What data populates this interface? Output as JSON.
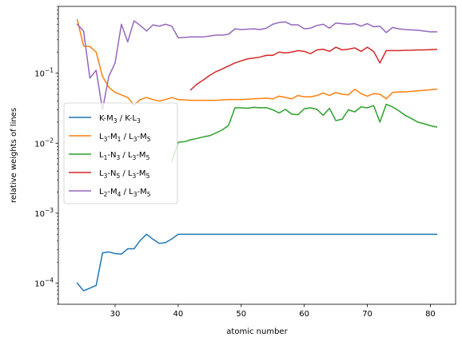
{
  "chart_data": {
    "type": "line",
    "title": "",
    "xlabel": "atomic number",
    "ylabel": "relative weights of lines",
    "yscale": "log",
    "xlim": [
      21,
      84
    ],
    "ylim": [
      5e-05,
      0.9
    ],
    "xticks": [
      30,
      40,
      50,
      60,
      70,
      80
    ],
    "yticks": [
      {
        "value": 0.0001,
        "base": "10",
        "exp": "−4"
      },
      {
        "value": 0.001,
        "base": "10",
        "exp": "−3"
      },
      {
        "value": 0.01,
        "base": "10",
        "exp": "−2"
      },
      {
        "value": 0.1,
        "base": "10",
        "exp": "−1"
      }
    ],
    "grid": false,
    "legend_position": "center-left",
    "series": [
      {
        "name": "K-M3 / K-L3",
        "legend": [
          [
            "K-M",
            ""
          ],
          [
            "3",
            "sub"
          ],
          [
            " / K-L",
            ""
          ],
          [
            "3",
            "sub"
          ]
        ],
        "color": "#1f77b4",
        "x": [
          24,
          25,
          26,
          27,
          28,
          29,
          30,
          31,
          32,
          33,
          34,
          35,
          36,
          37,
          38,
          39,
          40,
          81
        ],
        "y": [
          0.0001,
          7.8e-05,
          8.5e-05,
          9.3e-05,
          0.00027,
          0.00028,
          0.000265,
          0.00026,
          0.00031,
          0.00031,
          0.00041,
          0.0005,
          0.000425,
          0.00037,
          0.00038,
          0.00043,
          0.0005,
          0.0005
        ]
      },
      {
        "name": "L3-M1 / L3-M5",
        "legend": [
          [
            "L",
            ""
          ],
          [
            "3",
            "sub"
          ],
          [
            "-M",
            ""
          ],
          [
            "1",
            "sub"
          ],
          [
            " / L",
            ""
          ],
          [
            "3",
            "sub"
          ],
          [
            "-M",
            ""
          ],
          [
            "5",
            "sub"
          ]
        ],
        "color": "#ff7f0e",
        "x": [
          24,
          25,
          26,
          27,
          28,
          29,
          30,
          31,
          32,
          33,
          34,
          35,
          36,
          37,
          38,
          39,
          40,
          42,
          44,
          46,
          48,
          50,
          52,
          54,
          55,
          56,
          57,
          58,
          59,
          60,
          61,
          62,
          63,
          64,
          65,
          66,
          67,
          68,
          69,
          70,
          71,
          72,
          73,
          74,
          75,
          76,
          78,
          80,
          81
        ],
        "y": [
          0.58,
          0.245,
          0.24,
          0.2,
          0.09,
          0.063,
          0.053,
          0.049,
          0.045,
          0.035,
          0.042,
          0.045,
          0.042,
          0.04,
          0.042,
          0.045,
          0.042,
          0.041,
          0.041,
          0.041,
          0.042,
          0.042,
          0.043,
          0.044,
          0.043,
          0.047,
          0.045,
          0.043,
          0.048,
          0.046,
          0.046,
          0.048,
          0.052,
          0.048,
          0.053,
          0.05,
          0.049,
          0.059,
          0.051,
          0.047,
          0.051,
          0.05,
          0.043,
          0.053,
          0.054,
          0.054,
          0.056,
          0.058,
          0.059
        ]
      },
      {
        "name": "L1-N3 / L3-M5",
        "legend": [
          [
            "L",
            ""
          ],
          [
            "1",
            "sub"
          ],
          [
            "-N",
            ""
          ],
          [
            "3",
            "sub"
          ],
          [
            " / L",
            ""
          ],
          [
            "3",
            "sub"
          ],
          [
            "-M",
            ""
          ],
          [
            "5",
            "sub"
          ]
        ],
        "color": "#2ca02c",
        "x": [
          39,
          40,
          41,
          42,
          43,
          44,
          45,
          46,
          47,
          48,
          49,
          50,
          51,
          52,
          53,
          54,
          55,
          56,
          57,
          58,
          59,
          60,
          61,
          62,
          63,
          64,
          65,
          66,
          67,
          68,
          69,
          70,
          71,
          72,
          73,
          74,
          75,
          76,
          77,
          78,
          79,
          80,
          81
        ],
        "y": [
          0.0055,
          0.0103,
          0.0105,
          0.0112,
          0.0117,
          0.0123,
          0.0128,
          0.014,
          0.0155,
          0.018,
          0.032,
          0.032,
          0.0316,
          0.0325,
          0.032,
          0.0322,
          0.03,
          0.027,
          0.0305,
          0.026,
          0.0255,
          0.031,
          0.032,
          0.0305,
          0.025,
          0.0315,
          0.021,
          0.022,
          0.03,
          0.028,
          0.033,
          0.032,
          0.0345,
          0.02,
          0.036,
          0.033,
          0.029,
          0.025,
          0.0225,
          0.02,
          0.019,
          0.0178,
          0.017
        ]
      },
      {
        "name": "L3-N5 / L3-M5",
        "legend": [
          [
            "L",
            ""
          ],
          [
            "3",
            "sub"
          ],
          [
            "-N",
            ""
          ],
          [
            "5",
            "sub"
          ],
          [
            " / L",
            ""
          ],
          [
            "3",
            "sub"
          ],
          [
            "-M",
            ""
          ],
          [
            "5",
            "sub"
          ]
        ],
        "color": "#d62728",
        "x": [
          42,
          43,
          44,
          45,
          46,
          47,
          48,
          49,
          50,
          51,
          52,
          53,
          54,
          55,
          56,
          57,
          58,
          59,
          60,
          61,
          62,
          63,
          64,
          65,
          66,
          67,
          68,
          69,
          70,
          71,
          72,
          73,
          74,
          75,
          76,
          77,
          78,
          79,
          80,
          81
        ],
        "y": [
          0.058,
          0.07,
          0.08,
          0.093,
          0.105,
          0.115,
          0.127,
          0.14,
          0.15,
          0.16,
          0.165,
          0.17,
          0.18,
          0.18,
          0.2,
          0.195,
          0.2,
          0.21,
          0.205,
          0.19,
          0.215,
          0.22,
          0.205,
          0.235,
          0.215,
          0.22,
          0.23,
          0.205,
          0.235,
          0.205,
          0.14,
          0.21,
          0.21,
          0.21,
          0.212,
          0.213,
          0.215,
          0.215,
          0.217,
          0.219
        ]
      },
      {
        "name": "L2-M4 / L3-M5",
        "legend": [
          [
            "L",
            ""
          ],
          [
            "2",
            "sub"
          ],
          [
            "-M",
            ""
          ],
          [
            "4",
            "sub"
          ],
          [
            " / L",
            ""
          ],
          [
            "3",
            "sub"
          ],
          [
            "-M",
            ""
          ],
          [
            "5",
            "sub"
          ]
        ],
        "color": "#9467bd",
        "x": [
          24,
          25,
          26,
          27,
          28,
          29,
          30,
          31,
          32,
          33,
          34,
          35,
          36,
          37,
          38,
          39,
          40,
          42,
          44,
          46,
          47,
          48,
          49,
          50,
          52,
          53,
          54,
          55,
          56,
          57,
          58,
          59,
          60,
          61,
          62,
          63,
          64,
          65,
          66,
          67,
          68,
          69,
          70,
          71,
          72,
          73,
          74,
          75,
          76,
          78,
          80,
          81
        ],
        "y": [
          0.5,
          0.4,
          0.085,
          0.11,
          0.03,
          0.09,
          0.14,
          0.5,
          0.28,
          0.56,
          0.48,
          0.4,
          0.49,
          0.47,
          0.5,
          0.47,
          0.32,
          0.33,
          0.33,
          0.35,
          0.35,
          0.36,
          0.43,
          0.42,
          0.43,
          0.42,
          0.44,
          0.5,
          0.53,
          0.54,
          0.49,
          0.49,
          0.43,
          0.44,
          0.48,
          0.5,
          0.44,
          0.52,
          0.51,
          0.5,
          0.51,
          0.47,
          0.51,
          0.46,
          0.47,
          0.38,
          0.45,
          0.43,
          0.42,
          0.41,
          0.39,
          0.39
        ]
      }
    ]
  }
}
